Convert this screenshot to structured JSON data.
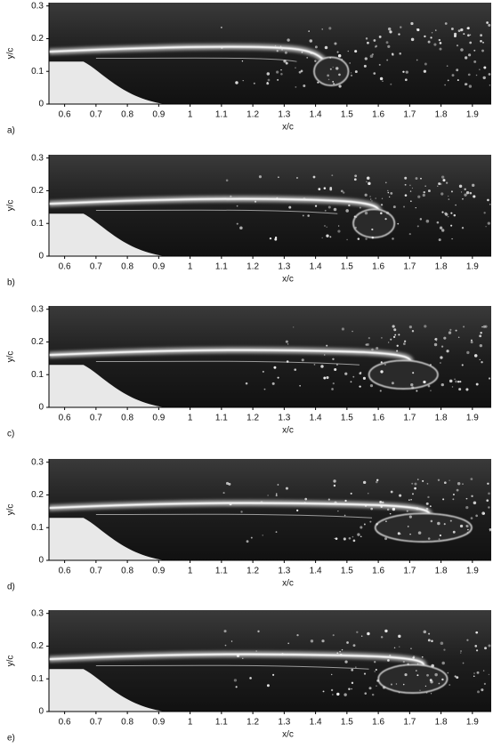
{
  "panels": [
    {
      "label": "a)",
      "x_label": "x/c",
      "y_label": "y/c",
      "xlim": [
        0.55,
        1.96
      ],
      "ylim": [
        0,
        0.31
      ],
      "xticks": [
        0.6,
        0.7,
        0.8,
        0.9,
        1,
        1.1,
        1.2,
        1.3,
        1.4,
        1.5,
        1.6,
        1.7,
        1.8,
        1.9
      ],
      "yticks": [
        0,
        0.1,
        0.2,
        0.3
      ]
    },
    {
      "label": "b)",
      "x_label": "x/c",
      "y_label": "y/c",
      "xlim": [
        0.55,
        1.96
      ],
      "ylim": [
        0,
        0.31
      ],
      "xticks": [
        0.6,
        0.7,
        0.8,
        0.9,
        1,
        1.1,
        1.2,
        1.3,
        1.4,
        1.5,
        1.6,
        1.7,
        1.8,
        1.9
      ],
      "yticks": [
        0,
        0.1,
        0.2,
        0.3
      ]
    },
    {
      "label": "c)",
      "x_label": "x/c",
      "y_label": "y/c",
      "xlim": [
        0.55,
        1.96
      ],
      "ylim": [
        0,
        0.31
      ],
      "xticks": [
        0.6,
        0.7,
        0.8,
        0.9,
        1,
        1.1,
        1.2,
        1.3,
        1.4,
        1.5,
        1.6,
        1.7,
        1.8,
        1.9
      ],
      "yticks": [
        0,
        0.1,
        0.2,
        0.3
      ]
    },
    {
      "label": "d)",
      "x_label": "x/c",
      "y_label": "y/c",
      "xlim": [
        0.55,
        1.96
      ],
      "ylim": [
        0,
        0.31
      ],
      "xticks": [
        0.6,
        0.7,
        0.8,
        0.9,
        1,
        1.1,
        1.2,
        1.3,
        1.4,
        1.5,
        1.6,
        1.7,
        1.8,
        1.9
      ],
      "yticks": [
        0,
        0.1,
        0.2,
        0.3
      ]
    },
    {
      "label": "e)",
      "x_label": "x/c",
      "y_label": "y/c",
      "xlim": [
        0.55,
        1.96
      ],
      "ylim": [
        0,
        0.31
      ],
      "xticks": [
        0.6,
        0.7,
        0.8,
        0.9,
        1,
        1.1,
        1.2,
        1.3,
        1.4,
        1.5,
        1.6,
        1.7,
        1.8,
        1.9
      ],
      "yticks": [
        0,
        0.1,
        0.2,
        0.3
      ]
    }
  ]
}
